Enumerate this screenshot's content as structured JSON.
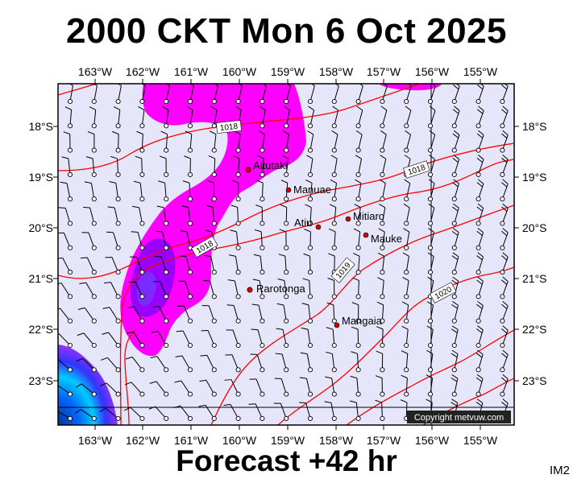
{
  "title": "2000 CKT Mon 6 Oct 2025",
  "footer": "Forecast +42 hr",
  "image_code": "IM2",
  "copyright": "Copyright metvuw.com",
  "longitude_labels": [
    "163°W",
    "162°W",
    "161°W",
    "160°W",
    "159°W",
    "158°W",
    "157°W",
    "156°W",
    "155°W"
  ],
  "latitude_labels": [
    "18°S",
    "19°S",
    "20°S",
    "21°S",
    "22°S",
    "23°S"
  ],
  "isobar_labels": [
    "1018",
    "1018",
    "1018",
    "1019",
    "1020"
  ],
  "places": [
    {
      "name": "Aitutaki"
    },
    {
      "name": "Manuae"
    },
    {
      "name": "Atiu"
    },
    {
      "name": "Mitiaro"
    },
    {
      "name": "Mauke"
    },
    {
      "name": "Rarotonga"
    },
    {
      "name": "Mangaia"
    }
  ],
  "colors": {
    "ocean": "#e6e6fa",
    "rain_light": "#ff00ff",
    "rain_heavy": "#9900ff",
    "isobar": "#ff0000",
    "grid": "#000000"
  }
}
